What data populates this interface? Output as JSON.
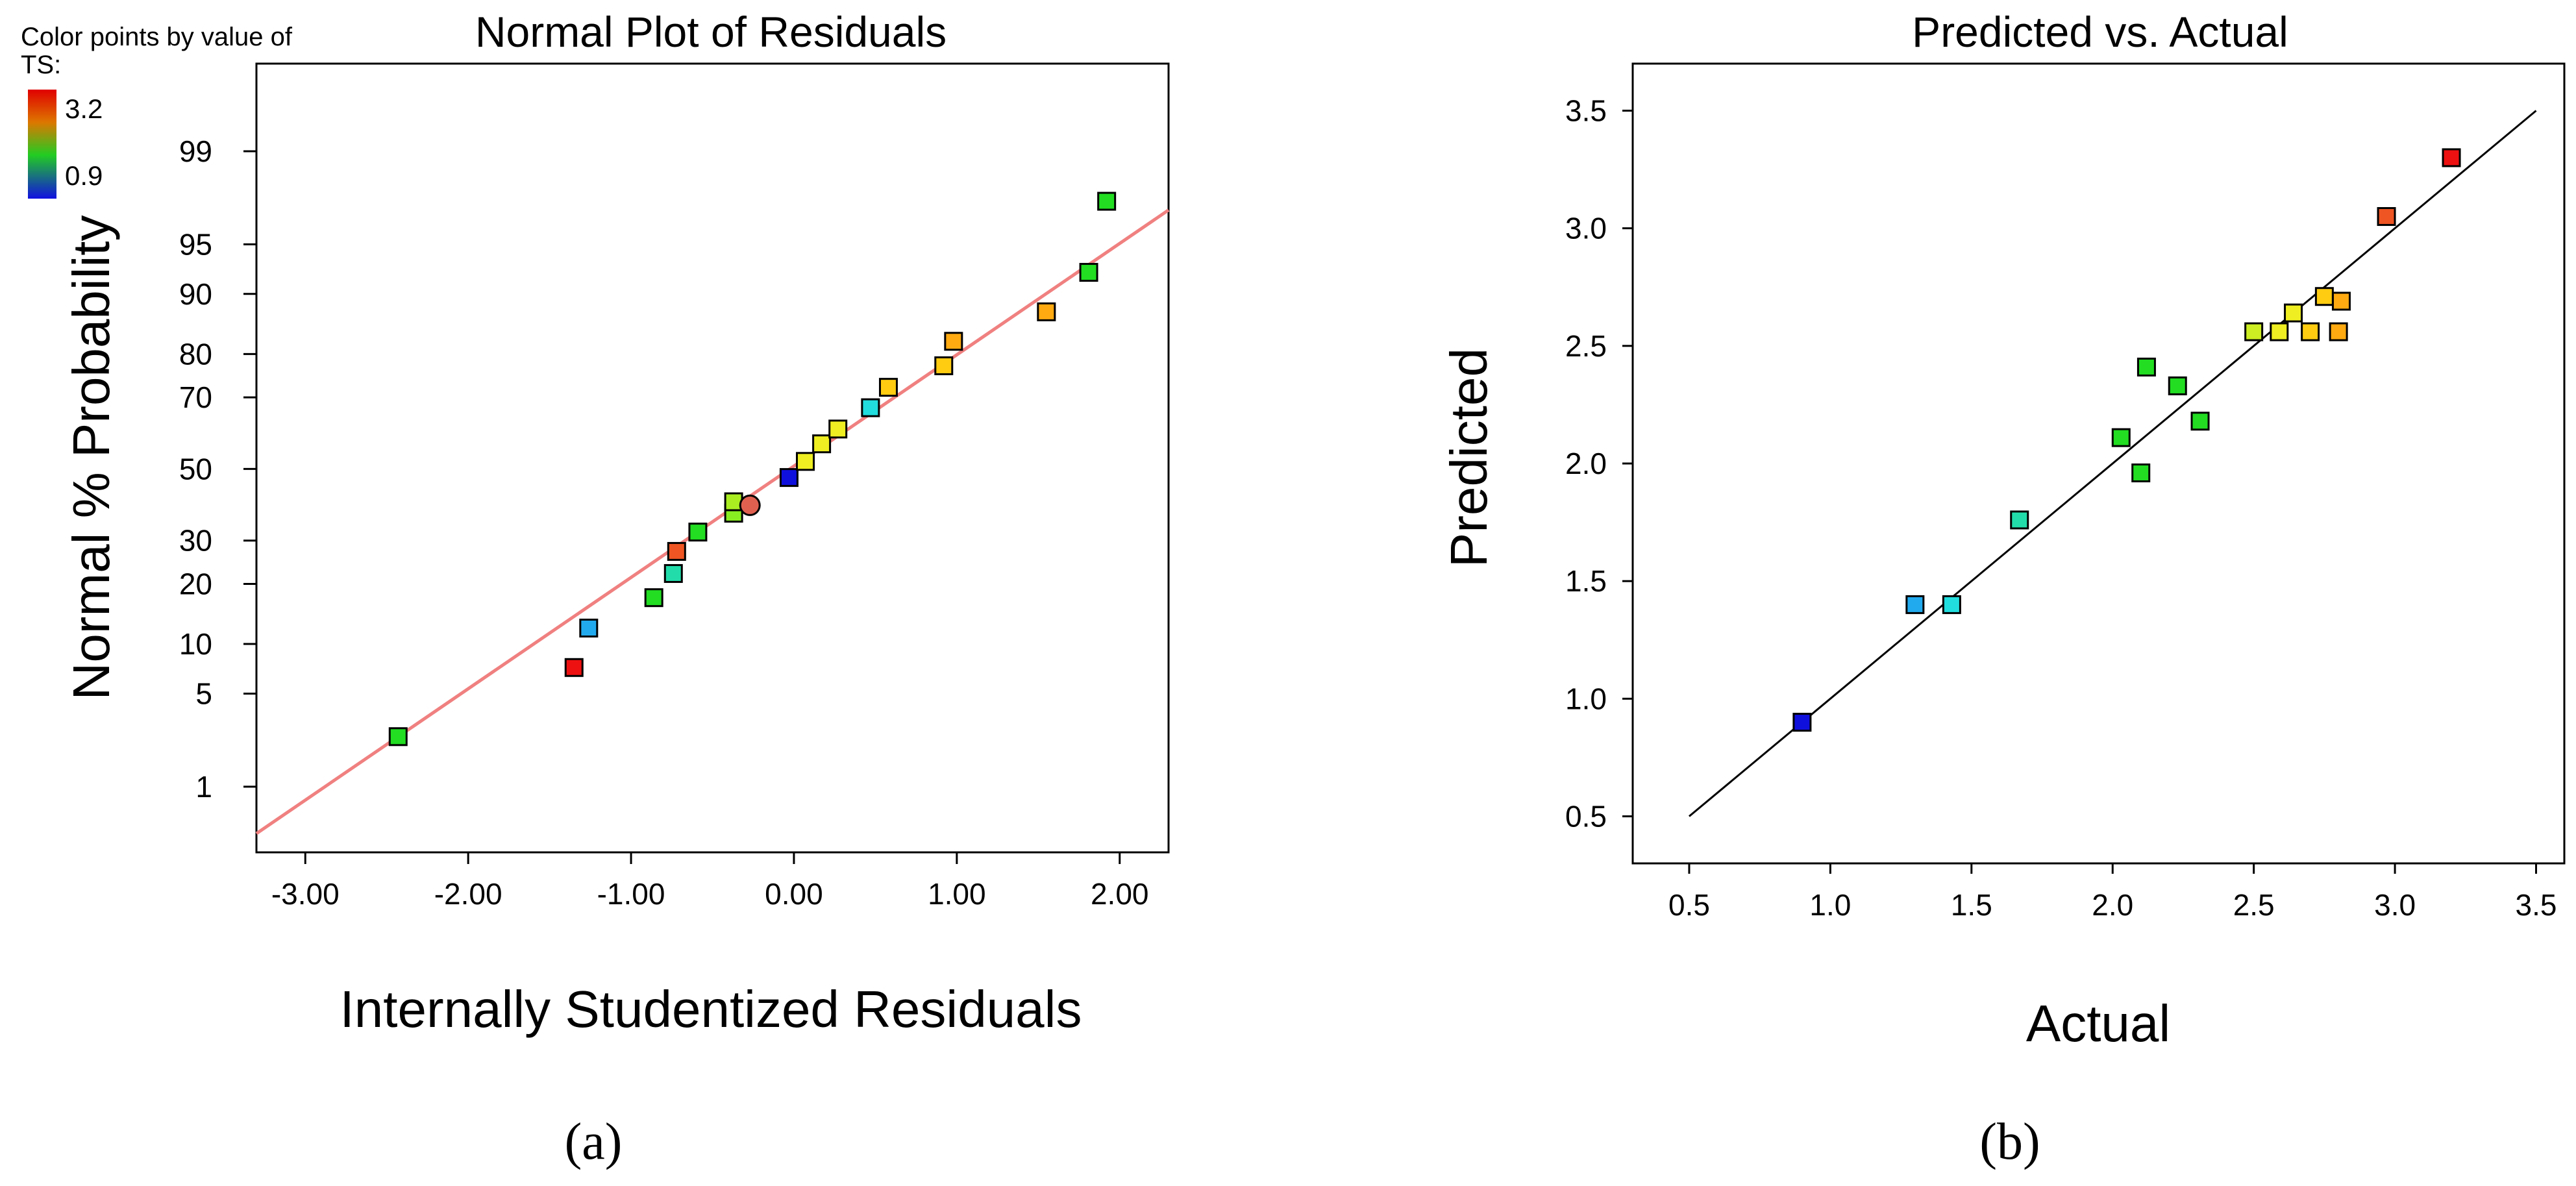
{
  "chart_data": [
    {
      "type": "scatter",
      "title": "Normal Plot of Residuals",
      "xlabel": "Internally Studentized Residuals",
      "ylabel": "Normal % Probability",
      "panel_label_text": "(a)",
      "xlim": [
        -3.3,
        2.3
      ],
      "x_ticks": [
        -3,
        -2,
        -1,
        0,
        1,
        2
      ],
      "x_tick_labels": [
        "-3.00",
        "-2.00",
        "-1.00",
        "0.00",
        "1.00",
        "2.00"
      ],
      "y_scale": "normal-probability",
      "ylim_percent": [
        0.25,
        99.85
      ],
      "y_ticks": [
        1,
        5,
        10,
        20,
        30,
        50,
        70,
        80,
        90,
        95,
        99
      ],
      "y_tick_labels": [
        "1",
        "5",
        "10",
        "20",
        "30",
        "50",
        "70",
        "80",
        "90",
        "95",
        "99"
      ],
      "reference_line": {
        "x": [
          -3.3,
          2.3
        ],
        "y_percent": [
          0.38,
          97.1
        ],
        "color": "#f08080"
      },
      "legend": {
        "title": "Color points by value of TS:",
        "max_label": "3.2",
        "min_label": "0.9",
        "max_color": "#e00000",
        "min_color": "#1010e0"
      },
      "points": [
        {
          "x": -2.43,
          "p": 2.5,
          "color": "#22dd22"
        },
        {
          "x": -1.35,
          "p": 7.3,
          "color": "#ee1111"
        },
        {
          "x": -1.26,
          "p": 12.2,
          "color": "#22aaee"
        },
        {
          "x": -0.86,
          "p": 17.3,
          "color": "#22dd22"
        },
        {
          "x": -0.74,
          "p": 22.2,
          "color": "#22ddaa"
        },
        {
          "x": -0.72,
          "p": 27.3,
          "color": "#ee5522"
        },
        {
          "x": -0.59,
          "p": 32.2,
          "color": "#22dd22"
        },
        {
          "x": -0.37,
          "p": 37.3,
          "color": "#88ee22"
        },
        {
          "x": -0.37,
          "p": 40.5,
          "color": "#aaee22"
        },
        {
          "x": -0.27,
          "p": 39.5,
          "color": "#e06050",
          "shape": "circle"
        },
        {
          "x": -0.03,
          "p": 47.5,
          "color": "#1010dd"
        },
        {
          "x": 0.07,
          "p": 52.2,
          "color": "#eeee22"
        },
        {
          "x": 0.17,
          "p": 57.3,
          "color": "#eeee22"
        },
        {
          "x": 0.27,
          "p": 61.5,
          "color": "#eeee22"
        },
        {
          "x": 0.47,
          "p": 67.3,
          "color": "#22dddd"
        },
        {
          "x": 0.58,
          "p": 72.5,
          "color": "#ffcc11"
        },
        {
          "x": 0.92,
          "p": 77.5,
          "color": "#ffcc11"
        },
        {
          "x": 0.98,
          "p": 82.5,
          "color": "#ffaa11"
        },
        {
          "x": 1.55,
          "p": 87.5,
          "color": "#ffaa11"
        },
        {
          "x": 1.81,
          "p": 92.5,
          "color": "#22dd22"
        },
        {
          "x": 1.92,
          "p": 97.5,
          "color": "#22dd22"
        }
      ]
    },
    {
      "type": "scatter",
      "title": "Predicted vs. Actual",
      "xlabel": "Actual",
      "ylabel": "Predicted",
      "panel_label_text": "(b)",
      "xlim": [
        0.3,
        3.6
      ],
      "ylim": [
        0.3,
        3.7
      ],
      "x_ticks": [
        0.5,
        1.0,
        1.5,
        2.0,
        2.5,
        3.0,
        3.5
      ],
      "x_tick_labels": [
        "0.5",
        "1.0",
        "1.5",
        "2.0",
        "2.5",
        "3.0",
        "3.5"
      ],
      "y_ticks": [
        0.5,
        1.0,
        1.5,
        2.0,
        2.5,
        3.0,
        3.5
      ],
      "y_tick_labels": [
        "0.5",
        "1.0",
        "1.5",
        "2.0",
        "2.5",
        "3.0",
        "3.5"
      ],
      "reference_line": {
        "x": [
          0.5,
          3.5
        ],
        "y": [
          0.5,
          3.5
        ],
        "color": "#000000"
      },
      "points": [
        {
          "x": 0.9,
          "y": 0.9,
          "color": "#1010dd"
        },
        {
          "x": 1.3,
          "y": 1.4,
          "color": "#22aaee"
        },
        {
          "x": 1.43,
          "y": 1.4,
          "color": "#22dddd"
        },
        {
          "x": 1.67,
          "y": 1.76,
          "color": "#22ddaa"
        },
        {
          "x": 2.03,
          "y": 2.11,
          "color": "#22dd22"
        },
        {
          "x": 2.1,
          "y": 1.96,
          "color": "#22dd22"
        },
        {
          "x": 2.12,
          "y": 2.41,
          "color": "#22dd22"
        },
        {
          "x": 2.23,
          "y": 2.33,
          "color": "#22dd22"
        },
        {
          "x": 2.31,
          "y": 2.18,
          "color": "#22dd22"
        },
        {
          "x": 2.5,
          "y": 2.56,
          "color": "#ccee22"
        },
        {
          "x": 2.59,
          "y": 2.56,
          "color": "#eeee22"
        },
        {
          "x": 2.64,
          "y": 2.64,
          "color": "#eeee22"
        },
        {
          "x": 2.7,
          "y": 2.56,
          "color": "#ffcc11"
        },
        {
          "x": 2.75,
          "y": 2.71,
          "color": "#ffcc11"
        },
        {
          "x": 2.8,
          "y": 2.56,
          "color": "#ffaa11"
        },
        {
          "x": 2.81,
          "y": 2.69,
          "color": "#ffaa11"
        },
        {
          "x": 2.97,
          "y": 3.05,
          "color": "#ee5522"
        },
        {
          "x": 3.2,
          "y": 3.3,
          "color": "#ee1111"
        }
      ]
    }
  ]
}
